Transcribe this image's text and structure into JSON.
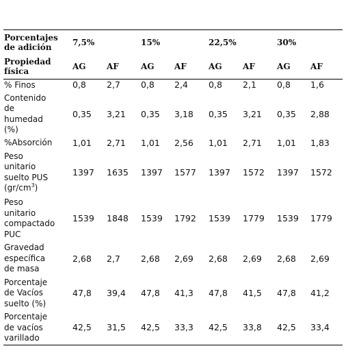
{
  "table": {
    "header1": {
      "label_line1": "Porcentajes",
      "label_line2": "de adición",
      "groups": [
        "7,5%",
        "15%",
        "22,5%",
        "30%"
      ]
    },
    "header2": {
      "label_line1": "Propiedad",
      "label_line2": "física",
      "subcolumns": [
        "AG",
        "AF",
        "AG",
        "AF",
        "AG",
        "AF",
        "AG",
        "AF"
      ]
    },
    "rows": [
      {
        "label_lines": [
          "% Finos"
        ],
        "values": [
          "0,8",
          "2,7",
          "0,8",
          "2,4",
          "0,8",
          "2,1",
          "0,8",
          "1,6"
        ]
      },
      {
        "label_lines": [
          "Contenido",
          "de",
          "humedad",
          "(%)"
        ],
        "values": [
          "0,35",
          "3,21",
          "0,35",
          "3,18",
          "0,35",
          "3,21",
          "0,35",
          "2,88"
        ]
      },
      {
        "label_lines": [
          "%Absorción"
        ],
        "values": [
          "1,01",
          "2,71",
          "1,01",
          "2,56",
          "1,01",
          "2,71",
          "1,01",
          "1,83"
        ]
      },
      {
        "label_lines": [
          "Peso",
          "unitario",
          "suelto PUS",
          "(gr/cm"
        ],
        "label_sup": "3",
        "label_suffix": ")",
        "values": [
          "1397",
          "1635",
          "1397",
          "1577",
          "1397",
          "1572",
          "1397",
          "1572"
        ]
      },
      {
        "label_lines": [
          "Peso",
          "unitario",
          "compactado",
          "PUC"
        ],
        "values": [
          "1539",
          "1848",
          "1539",
          "1792",
          "1539",
          "1779",
          "1539",
          "1779"
        ]
      },
      {
        "label_lines": [
          "Gravedad",
          "específica",
          "de masa"
        ],
        "values": [
          "2,68",
          "2,7",
          "2,68",
          "2,69",
          "2,68",
          "2,69",
          "2,68",
          "2,69"
        ]
      },
      {
        "label_lines": [
          "Porcentaje",
          "de Vacíos",
          "suelto (%)"
        ],
        "values": [
          "47,8",
          "39,4",
          "47,8",
          "41,3",
          "47,8",
          "41,5",
          "47,8",
          "41,2"
        ]
      },
      {
        "label_lines": [
          "Porcentaje",
          "de vacíos",
          "varillado"
        ],
        "values": [
          "42,5",
          "31,5",
          "42,5",
          "33,3",
          "42,5",
          "33,8",
          "42,5",
          "33,4"
        ]
      }
    ]
  }
}
